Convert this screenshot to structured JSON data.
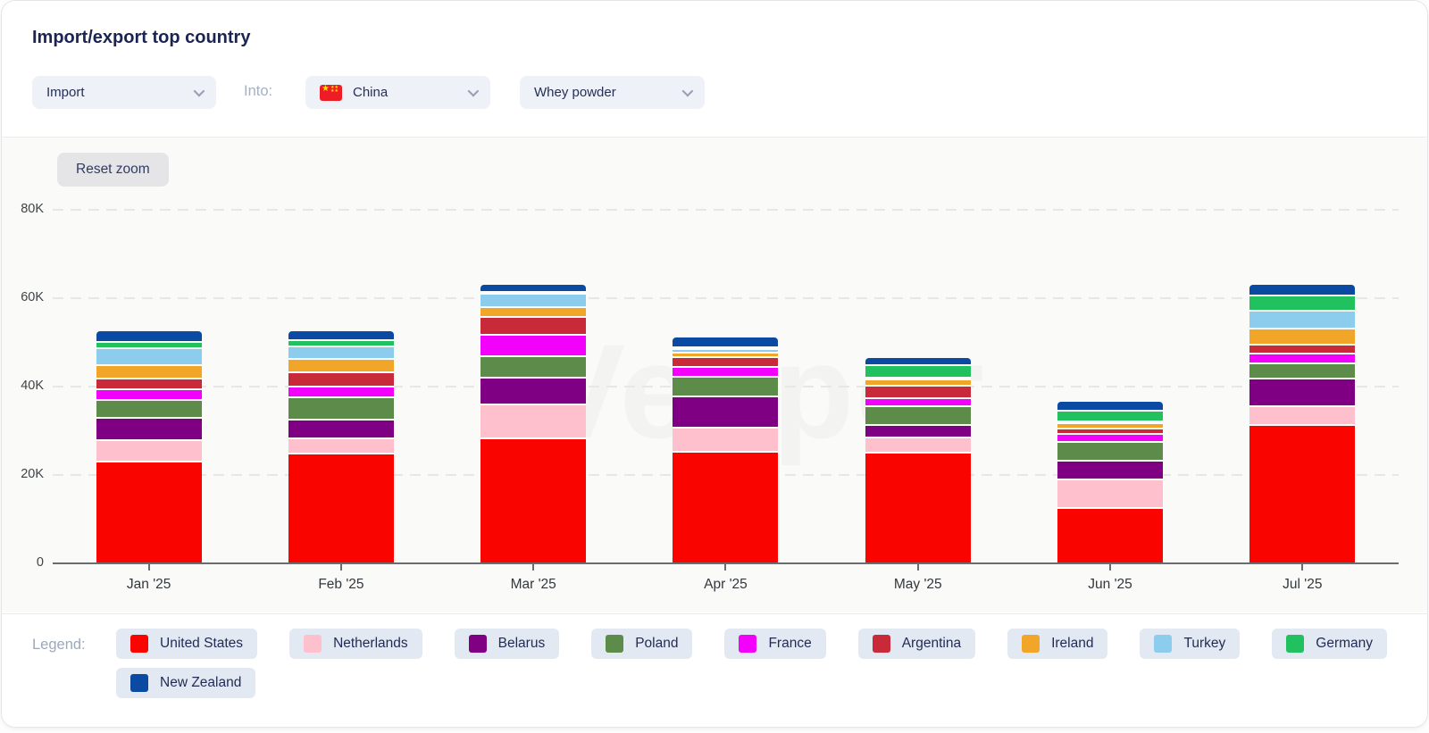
{
  "header": {
    "title": "Import/export top country",
    "controls": {
      "direction_value": "Import",
      "into_label": "Into:",
      "country_value": "China",
      "country_flag": "china-flag",
      "product_value": "Whey powder"
    }
  },
  "chart": {
    "reset_zoom_label": "Reset zoom",
    "watermark": "Vesper"
  },
  "legend": {
    "label": "Legend:"
  },
  "chart_data": {
    "type": "bar",
    "stacked": true,
    "title": "Import/export top country",
    "xlabel": "",
    "ylabel": "",
    "unit": "K (thousands)",
    "ylim": [
      0,
      80
    ],
    "grid": "dashed horizontal every 20K",
    "legend_position": "bottom",
    "categories": [
      "Jan '25",
      "Feb '25",
      "Mar '25",
      "Apr '25",
      "May '25",
      "Jun '25",
      "Jul '25"
    ],
    "yticks": [
      {
        "label": "0",
        "value": 0
      },
      {
        "label": "20K",
        "value": 20
      },
      {
        "label": "40K",
        "value": 40
      },
      {
        "label": "60K",
        "value": 60
      },
      {
        "label": "80K",
        "value": 80
      }
    ],
    "series": [
      {
        "name": "United States",
        "color": "#fa0400",
        "values": [
          23.3,
          25.0,
          28.4,
          25.5,
          25.3,
          12.7,
          31.5
        ]
      },
      {
        "name": "Netherlands",
        "color": "#ffc0cd",
        "values": [
          4.7,
          3.4,
          7.8,
          5.5,
          3.4,
          6.4,
          4.3
        ]
      },
      {
        "name": "Belarus",
        "color": "#800084",
        "values": [
          5.2,
          4.4,
          6.0,
          7.0,
          2.8,
          4.4,
          6.2
        ]
      },
      {
        "name": "Poland",
        "color": "#5d8c4a",
        "values": [
          4.0,
          4.9,
          4.9,
          4.4,
          4.2,
          4.2,
          3.5
        ]
      },
      {
        "name": "France",
        "color": "#f202fa",
        "values": [
          2.4,
          2.5,
          4.9,
          2.2,
          1.8,
          1.8,
          2.2
        ]
      },
      {
        "name": "Argentina",
        "color": "#c92a3a",
        "values": [
          2.4,
          3.3,
          3.9,
          2.2,
          3.0,
          1.2,
          2.0
        ]
      },
      {
        "name": "Ireland",
        "color": "#f2a629",
        "values": [
          3.0,
          2.9,
          2.3,
          1.1,
          1.4,
          1.2,
          3.6
        ]
      },
      {
        "name": "Turkey",
        "color": "#8ccdee",
        "values": [
          3.9,
          2.9,
          3.1,
          0.9,
          0.4,
          0.5,
          4.1
        ]
      },
      {
        "name": "Germany",
        "color": "#21c15f",
        "values": [
          1.4,
          1.5,
          0.4,
          0.1,
          2.8,
          2.3,
          3.5
        ]
      },
      {
        "name": "New Zealand",
        "color": "#0b4aa2",
        "values": [
          2.2,
          1.8,
          1.4,
          2.0,
          1.4,
          1.9,
          2.1
        ]
      }
    ]
  }
}
